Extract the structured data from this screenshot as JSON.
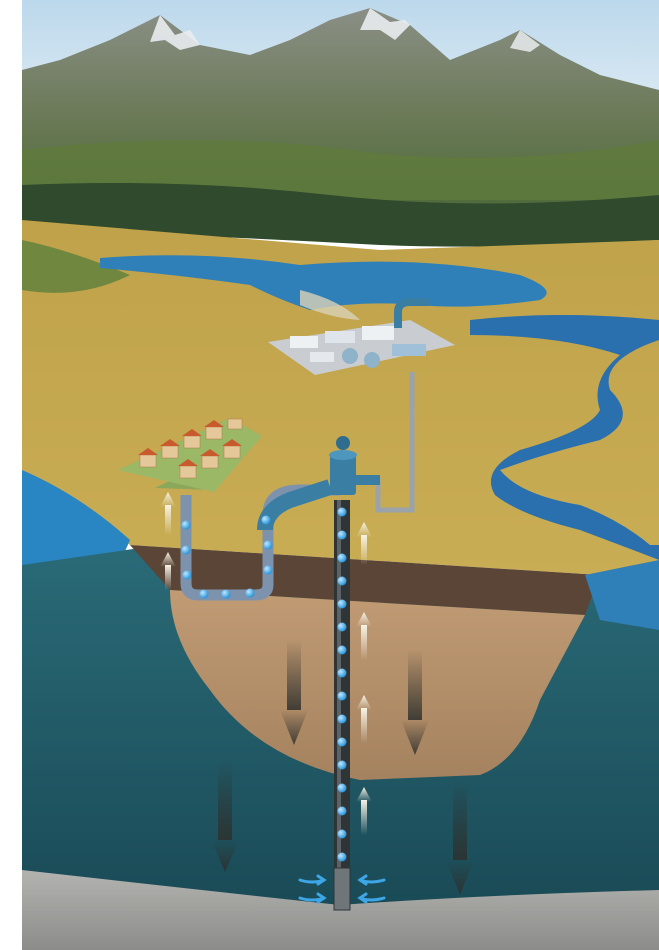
{
  "illustration": {
    "kind": "groundwater well cross-section",
    "components": {
      "mountains": "mountain-range",
      "reservoir": "reservoir-lake",
      "river": "river",
      "treatment_plant": "water-treatment-plant",
      "village": "housing-settlement",
      "pump": "well-pump",
      "well": "borehole-pipe",
      "aquifer": "aquifer-layer",
      "bedrock": "bedrock-layer",
      "soil": "topsoil-layer",
      "clay": "clay-layer"
    },
    "colors": {
      "sky": "#cfe3f0",
      "mountain": "#6b7a68",
      "snow": "#e9ecef",
      "forest": "#2f4a2c",
      "plain": "#c7a94b",
      "water": "#2f7fb8",
      "river": "#2a6fae",
      "aquifer": "#1f5a66",
      "topsoil": "#5a4536",
      "clay": "#b28e6a",
      "bedrock": "#9a9a98",
      "pipe": "#6f86a2",
      "pump": "#3a7fa3",
      "droplet": "#3da6e6",
      "flow_up": "#f3efe3",
      "flow_down": "#3a3f3c"
    }
  }
}
